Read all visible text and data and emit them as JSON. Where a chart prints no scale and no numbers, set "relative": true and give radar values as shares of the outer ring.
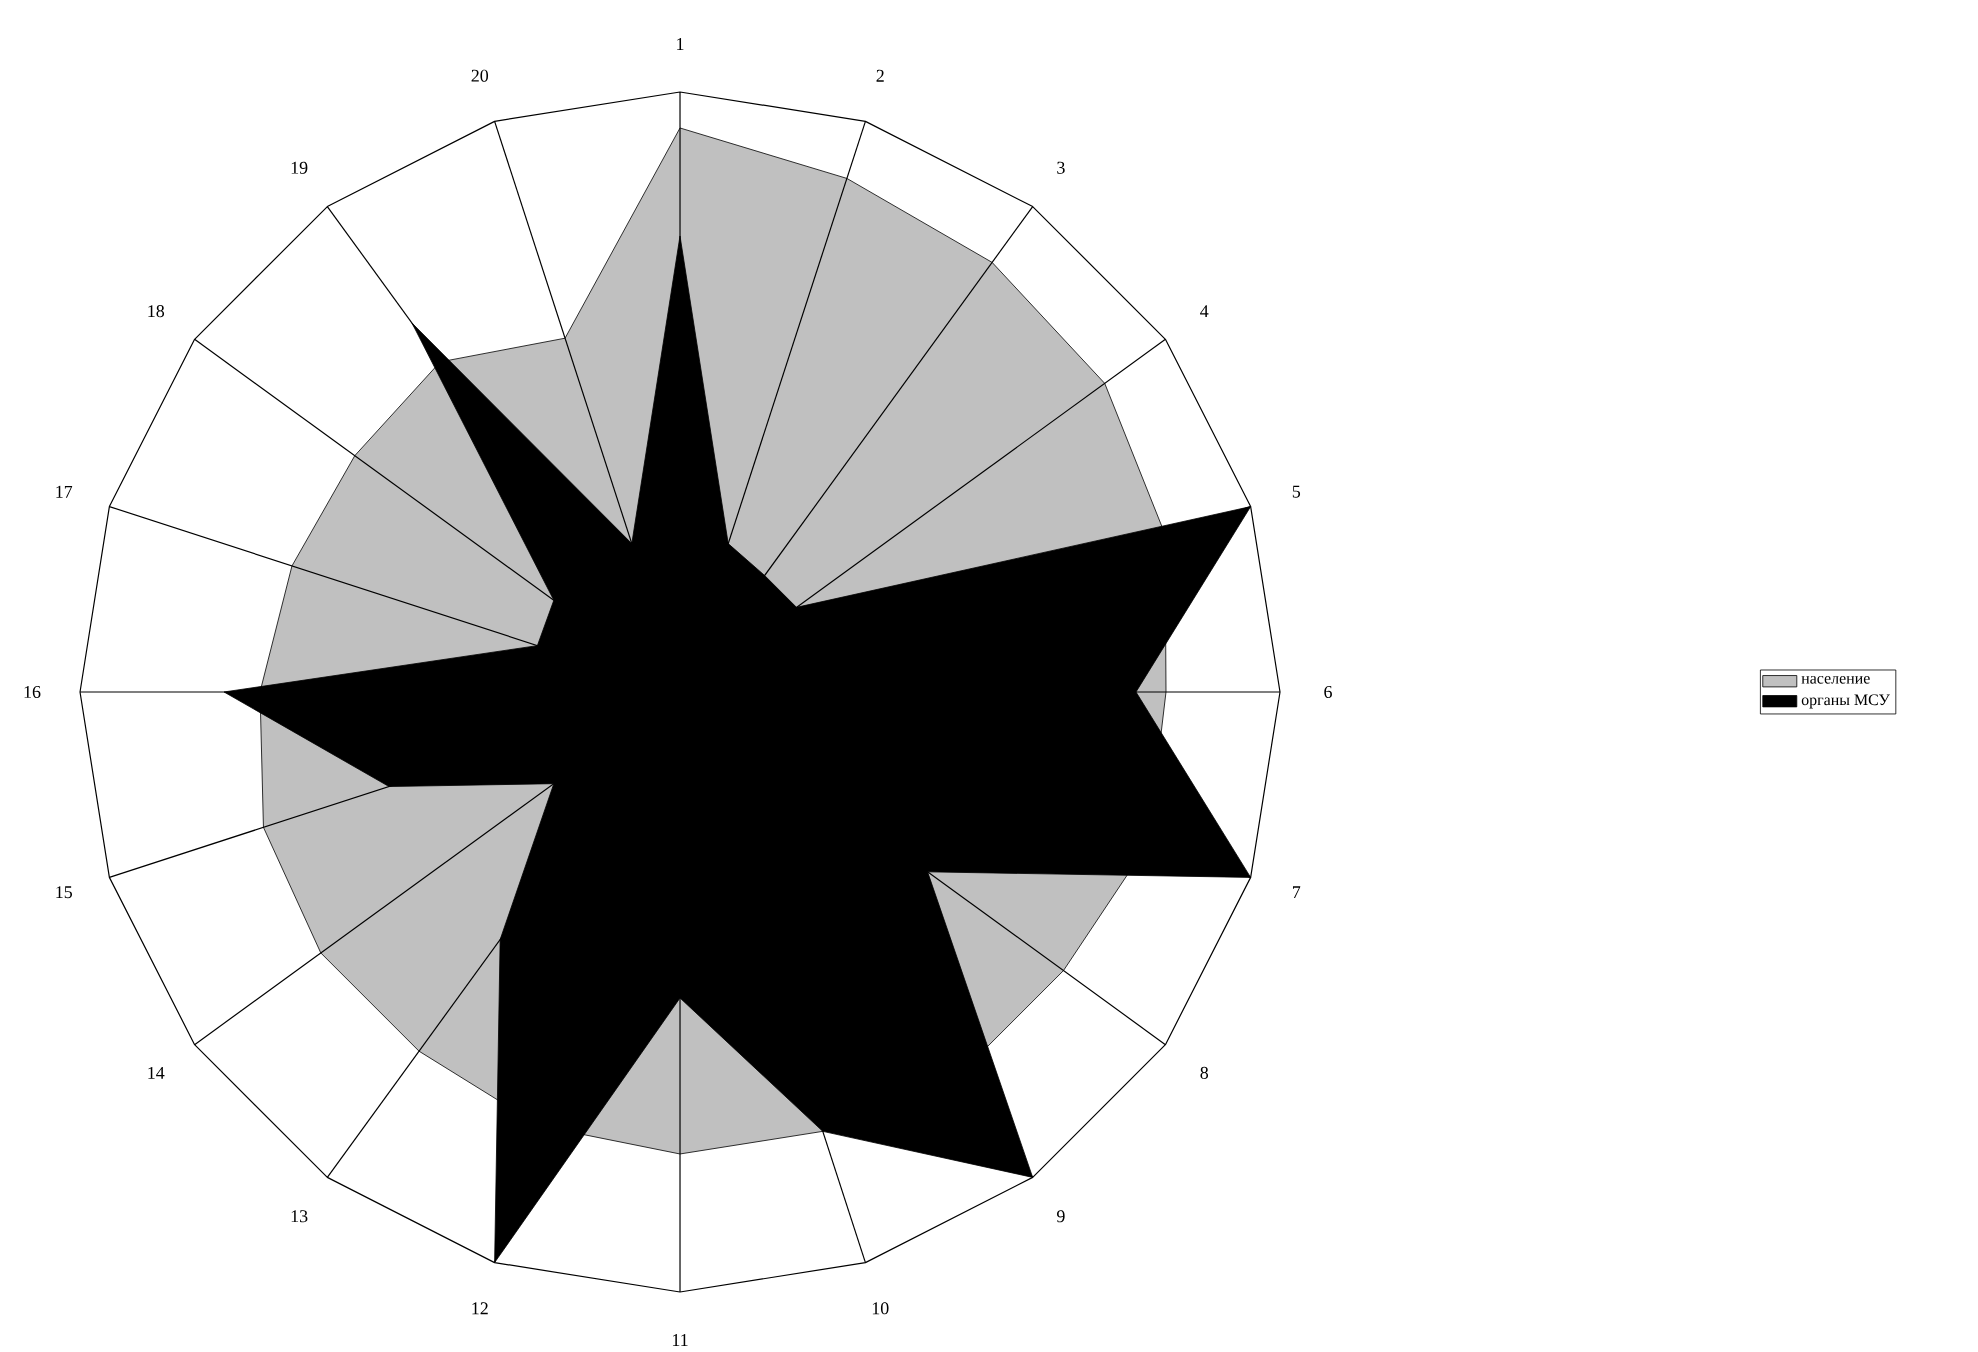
{
  "chart_data": {
    "type": "radar",
    "relative": true,
    "legend": "right",
    "categories": [
      "1",
      "2",
      "3",
      "4",
      "5",
      "6",
      "7",
      "8",
      "9",
      "10",
      "11",
      "12",
      "13",
      "14",
      "15",
      "16",
      "17",
      "18",
      "19",
      "20"
    ],
    "series": [
      {
        "name": "население",
        "color": "#c0c0c0",
        "values": [
          0.94,
          0.9,
          0.885,
          0.875,
          0.85,
          0.81,
          0.82,
          0.79,
          0.79,
          0.77,
          0.77,
          0.76,
          0.74,
          0.74,
          0.73,
          0.7,
          0.68,
          0.67,
          0.68,
          0.62
        ]
      },
      {
        "name": "органы МСУ",
        "color": "#000000",
        "values": [
          0.76,
          0.26,
          0.24,
          0.24,
          1.0,
          0.76,
          1.0,
          0.51,
          1.0,
          0.77,
          0.51,
          1.0,
          0.51,
          0.26,
          0.51,
          0.76,
          0.25,
          0.26,
          0.76,
          0.26
        ]
      }
    ]
  }
}
